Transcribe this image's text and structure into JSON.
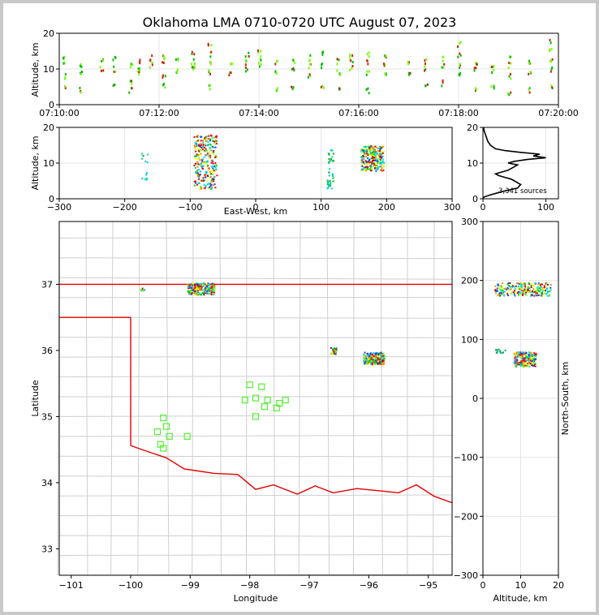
{
  "title": "Oklahoma LMA 0710-0720 UTC August 07, 2023",
  "chart_data": [
    {
      "id": "time-height",
      "type": "scatter",
      "xlabel": "",
      "ylabel": "Altitude, km",
      "x_tick_labels": [
        "07:10:00",
        "07:12:00",
        "07:14:00",
        "07:16:00",
        "07:18:00",
        "07:20:00"
      ],
      "xlim": [
        "07:10:00",
        "07:20:00"
      ],
      "ylim": [
        0,
        20
      ],
      "y_ticks": [
        0,
        10,
        20
      ],
      "grid": true,
      "points_approx": [
        {
          "t": "07:10:05",
          "alt": [
            5,
            8,
            11,
            13
          ]
        },
        {
          "t": "07:10:25",
          "alt": [
            4,
            9,
            11
          ]
        },
        {
          "t": "07:10:50",
          "alt": [
            10,
            12
          ]
        },
        {
          "t": "07:11:05",
          "alt": [
            6,
            10,
            13
          ]
        },
        {
          "t": "07:11:25",
          "alt": [
            4,
            6,
            11
          ]
        },
        {
          "t": "07:11:35",
          "alt": [
            9,
            10,
            12
          ]
        },
        {
          "t": "07:11:50",
          "alt": [
            11,
            13
          ]
        },
        {
          "t": "07:12:05",
          "alt": [
            5,
            8,
            12,
            13
          ]
        },
        {
          "t": "07:12:20",
          "alt": [
            9,
            12
          ]
        },
        {
          "t": "07:12:40",
          "alt": [
            10,
            11,
            12,
            14
          ]
        },
        {
          "t": "07:13:00",
          "alt": [
            5,
            9,
            12,
            14,
            17
          ]
        },
        {
          "t": "07:13:25",
          "alt": [
            9,
            11
          ]
        },
        {
          "t": "07:13:45",
          "alt": [
            10,
            12,
            14
          ]
        },
        {
          "t": "07:14:00",
          "alt": [
            11,
            13,
            15
          ]
        },
        {
          "t": "07:14:20",
          "alt": [
            4,
            9,
            12
          ]
        },
        {
          "t": "07:14:40",
          "alt": [
            5,
            10,
            12
          ]
        },
        {
          "t": "07:15:00",
          "alt": [
            8,
            11,
            13
          ]
        },
        {
          "t": "07:15:15",
          "alt": [
            5,
            11,
            14
          ]
        },
        {
          "t": "07:15:35",
          "alt": [
            5,
            9,
            12
          ]
        },
        {
          "t": "07:15:50",
          "alt": [
            10,
            12,
            14
          ]
        },
        {
          "t": "07:16:10",
          "alt": [
            4,
            9,
            12,
            14
          ]
        },
        {
          "t": "07:16:30",
          "alt": [
            8,
            11,
            13
          ]
        },
        {
          "t": "07:17:00",
          "alt": [
            9,
            12
          ]
        },
        {
          "t": "07:17:20",
          "alt": [
            5,
            10,
            12
          ]
        },
        {
          "t": "07:17:40",
          "alt": [
            6,
            11,
            13
          ]
        },
        {
          "t": "07:18:00",
          "alt": [
            9,
            11,
            14,
            17
          ]
        },
        {
          "t": "07:18:20",
          "alt": [
            4,
            10,
            12
          ]
        },
        {
          "t": "07:18:40",
          "alt": [
            5,
            9,
            11
          ]
        },
        {
          "t": "07:19:00",
          "alt": [
            3,
            8,
            11,
            13
          ]
        },
        {
          "t": "07:19:25",
          "alt": [
            4,
            9,
            12
          ]
        },
        {
          "t": "07:19:50",
          "alt": [
            5,
            10,
            12,
            15,
            18
          ]
        }
      ]
    },
    {
      "id": "ew-height",
      "type": "scatter",
      "xlabel": "East-West, km",
      "ylabel": "Altitude, km",
      "xlim": [
        -300,
        300
      ],
      "x_ticks": [
        -300,
        -200,
        -100,
        0,
        100,
        200,
        300
      ],
      "ylim": [
        0,
        20
      ],
      "y_ticks": [
        0,
        10,
        20
      ],
      "grid": true,
      "clusters": [
        {
          "x_range": [
            -95,
            -60
          ],
          "alt_range": [
            3,
            18
          ],
          "density": "high"
        },
        {
          "x_range": [
            108,
            118
          ],
          "alt_range": [
            3,
            14
          ],
          "density": "low"
        },
        {
          "x_range": [
            160,
            195
          ],
          "alt_range": [
            8,
            15
          ],
          "density": "high"
        },
        {
          "x_range": [
            -175,
            -165
          ],
          "alt_range": [
            5,
            13
          ],
          "density": "sparse"
        }
      ]
    },
    {
      "id": "altitude-histogram",
      "type": "line",
      "xlabel": "",
      "ylabel": "",
      "xlim": [
        0,
        120
      ],
      "x_ticks": [
        0,
        100
      ],
      "ylim": [
        0,
        20
      ],
      "y_ticks": [
        0,
        10,
        20
      ],
      "annotation": "3,341 sources",
      "profile": [
        [
          0,
          0.2
        ],
        [
          2,
          0.5
        ],
        [
          10,
          1
        ],
        [
          30,
          2
        ],
        [
          55,
          3
        ],
        [
          60,
          4
        ],
        [
          50,
          5
        ],
        [
          45,
          5.5
        ],
        [
          35,
          6
        ],
        [
          25,
          6.5
        ],
        [
          20,
          7
        ],
        [
          30,
          7.5
        ],
        [
          40,
          8
        ],
        [
          50,
          9
        ],
        [
          55,
          9.5
        ],
        [
          40,
          10
        ],
        [
          50,
          10.5
        ],
        [
          70,
          11
        ],
        [
          100,
          11.5
        ],
        [
          80,
          12
        ],
        [
          90,
          12.5
        ],
        [
          60,
          13
        ],
        [
          35,
          13.5
        ],
        [
          20,
          14
        ],
        [
          12,
          15
        ],
        [
          8,
          16
        ],
        [
          6,
          17
        ],
        [
          4,
          18
        ],
        [
          2,
          19
        ],
        [
          1,
          20
        ]
      ]
    },
    {
      "id": "plan-map",
      "type": "scatter",
      "xlabel": "Longitude",
      "ylabel": "Latitude",
      "xlim": [
        -101.2,
        -94.6
      ],
      "x_ticks": [
        -101,
        -100,
        -99,
        -98,
        -97,
        -96,
        -95
      ],
      "ylim": [
        32.6,
        37.95
      ],
      "y_ticks": [
        33,
        34,
        35,
        36,
        37
      ],
      "clusters": [
        {
          "lon_range": [
            -99.05,
            -98.6
          ],
          "lat_range": [
            36.85,
            37.03
          ],
          "density": "high"
        },
        {
          "lon_range": [
            -96.1,
            -95.75
          ],
          "lat_range": [
            35.8,
            35.98
          ],
          "density": "high"
        },
        {
          "lon_range": [
            -96.65,
            -96.55
          ],
          "lat_range": [
            35.95,
            36.05
          ],
          "density": "medium"
        },
        {
          "lon_range": [
            -99.85,
            -99.75
          ],
          "lat_range": [
            36.9,
            36.95
          ],
          "density": "sparse"
        }
      ],
      "stations": [
        {
          "lon": -99.45,
          "lat": 34.98
        },
        {
          "lon": -99.4,
          "lat": 34.85
        },
        {
          "lon": -99.55,
          "lat": 34.77
        },
        {
          "lon": -99.35,
          "lat": 34.7
        },
        {
          "lon": -99.05,
          "lat": 34.7
        },
        {
          "lon": -99.5,
          "lat": 34.58
        },
        {
          "lon": -99.45,
          "lat": 34.52
        },
        {
          "lon": -98.0,
          "lat": 35.48
        },
        {
          "lon": -97.8,
          "lat": 35.45
        },
        {
          "lon": -97.9,
          "lat": 35.28
        },
        {
          "lon": -98.08,
          "lat": 35.25
        },
        {
          "lon": -97.7,
          "lat": 35.25
        },
        {
          "lon": -97.75,
          "lat": 35.15
        },
        {
          "lon": -97.55,
          "lat": 35.13
        },
        {
          "lon": -97.4,
          "lat": 35.25
        },
        {
          "lon": -97.9,
          "lat": 35.0
        },
        {
          "lon": -97.5,
          "lat": 35.2
        }
      ]
    },
    {
      "id": "ns-height",
      "type": "scatter",
      "xlabel": "Altitude, km",
      "ylabel": "North-South, km",
      "xlim": [
        0,
        20
      ],
      "x_ticks": [
        0,
        10,
        20
      ],
      "ylim": [
        -300,
        300
      ],
      "y_ticks": [
        -300,
        -200,
        -100,
        0,
        100,
        200,
        300
      ],
      "clusters": [
        {
          "alt_range": [
            3,
            18
          ],
          "ns_range": [
            175,
            197
          ],
          "density": "high"
        },
        {
          "alt_range": [
            8,
            14
          ],
          "ns_range": [
            55,
            80
          ],
          "density": "high"
        },
        {
          "alt_range": [
            3,
            6
          ],
          "ns_range": [
            78,
            85
          ],
          "density": "sparse"
        }
      ]
    }
  ]
}
